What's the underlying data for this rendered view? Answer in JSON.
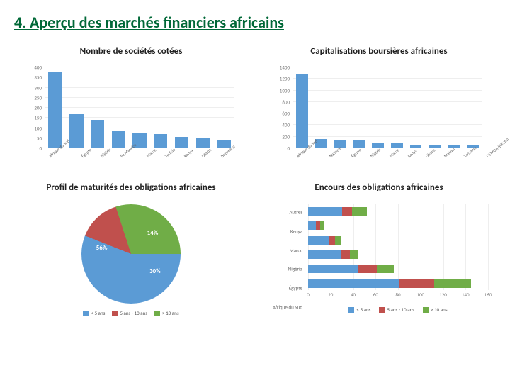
{
  "slide_title": "4. Aperçu des marchés financiers africains",
  "colors": {
    "series_blue": "#5b9bd5",
    "series_red": "#c0504d",
    "series_green": "#70ad47",
    "axis": "#777777",
    "grid": "#eeeeee"
  },
  "chart1": {
    "type": "bar",
    "title": "Nombre de sociétés cotées",
    "categories": [
      "Afrique du Sud",
      "Égypte",
      "Nigéria",
      "Île Maurice",
      "Maroc",
      "Tunisie",
      "Kenya",
      "UMOA",
      "Botswana"
    ],
    "values": [
      380,
      170,
      140,
      85,
      75,
      70,
      55,
      50,
      40
    ],
    "ylim": [
      0,
      400
    ],
    "ytick_step": 50,
    "bar_color": "#5b9bd5",
    "label_fontsize": 7
  },
  "chart2": {
    "type": "bar",
    "title": "Capitalisations boursières africaines",
    "categories": [
      "Afrique du Sud",
      "Namibie",
      "Égypte",
      "Nigéria",
      "Maroc",
      "Kenya",
      "Ghana",
      "Malawi",
      "Tanzanie",
      "UEMOA (BRVM)"
    ],
    "values": [
      1280,
      160,
      150,
      140,
      95,
      85,
      60,
      55,
      50,
      45
    ],
    "ylim": [
      0,
      1400
    ],
    "ytick_step": 200,
    "bar_color": "#5b9bd5",
    "label_fontsize": 7
  },
  "chart3": {
    "type": "pie",
    "title": "Profil de maturités des obligations africaines",
    "slices": [
      {
        "label": "< 5 ans",
        "value": 56,
        "color": "#5b9bd5",
        "text_label": "56%"
      },
      {
        "label": "5 ans - 10 ans",
        "value": 14,
        "color": "#c0504d",
        "text_label": "14%"
      },
      {
        "label": "> 10 ans",
        "value": 30,
        "color": "#70ad47",
        "text_label": "30%"
      }
    ],
    "legend": [
      "< 5 ans",
      "5 ans - 10 ans",
      "> 10 ans"
    ]
  },
  "chart4": {
    "type": "stacked-hbar",
    "title": "Encours des obligations africaines",
    "categories": [
      "Autres",
      "Kenya",
      "Maroc",
      "Nigéria",
      "Égypte",
      "Afrique du Sud"
    ],
    "series": [
      {
        "label": "< 5 ans",
        "color": "#5b9bd5",
        "values": [
          30,
          7,
          18,
          29,
          45,
          81
        ]
      },
      {
        "label": "5 ans - 10 ans",
        "color": "#c0504d",
        "values": [
          9,
          4,
          6,
          8,
          16,
          31
        ]
      },
      {
        "label": "> 10 ans",
        "color": "#70ad47",
        "values": [
          13,
          3,
          5,
          7,
          15,
          33
        ]
      }
    ],
    "xlim": [
      0,
      160
    ],
    "xtick_step": 20,
    "label_fontsize": 7
  }
}
